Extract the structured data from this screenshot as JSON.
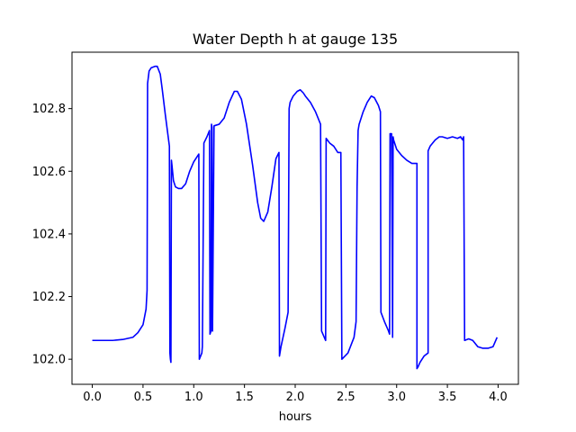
{
  "chart_data": {
    "type": "line",
    "title": "Water Depth h at gauge 135",
    "xlabel": "hours",
    "ylabel": "",
    "xlim": [
      -0.2,
      4.2
    ],
    "ylim": [
      101.92,
      102.98
    ],
    "x_ticks": [
      0.0,
      0.5,
      1.0,
      1.5,
      2.0,
      2.5,
      3.0,
      3.5,
      4.0
    ],
    "x_tick_labels": [
      "0.0",
      "0.5",
      "1.0",
      "1.5",
      "2.0",
      "2.5",
      "3.0",
      "3.5",
      "4.0"
    ],
    "y_ticks": [
      102.0,
      102.2,
      102.4,
      102.6,
      102.8
    ],
    "y_tick_labels": [
      "102.0",
      "102.2",
      "102.4",
      "102.6",
      "102.8"
    ],
    "grid": false,
    "legend": "none",
    "line_color": "#0000ff",
    "series": [
      {
        "x": [
          0.0,
          0.2,
          0.3,
          0.4,
          0.45,
          0.5,
          0.53,
          0.54,
          0.545,
          0.56,
          0.58,
          0.62,
          0.64,
          0.67,
          0.69,
          0.72,
          0.76,
          0.765,
          0.77,
          0.775,
          0.78,
          0.785,
          0.8,
          0.82,
          0.85,
          0.88,
          0.92,
          0.96,
          1.0,
          1.05,
          1.055,
          1.08,
          1.085,
          1.1,
          1.13,
          1.155,
          1.16,
          1.17,
          1.175,
          1.18,
          1.185,
          1.2,
          1.25,
          1.3,
          1.35,
          1.4,
          1.43,
          1.47,
          1.52,
          1.58,
          1.63,
          1.66,
          1.69,
          1.73,
          1.77,
          1.81,
          1.84,
          1.845,
          1.86,
          1.9,
          1.93,
          1.94,
          1.95,
          1.98,
          2.02,
          2.05,
          2.08,
          2.1,
          2.15,
          2.2,
          2.25,
          2.26,
          2.3,
          2.305,
          2.34,
          2.38,
          2.42,
          2.45,
          2.46,
          2.52,
          2.58,
          2.6,
          2.61,
          2.62,
          2.63,
          2.67,
          2.71,
          2.75,
          2.78,
          2.82,
          2.84,
          2.845,
          2.88,
          2.92,
          2.93,
          2.935,
          2.95,
          2.96,
          2.965,
          2.97,
          3.0,
          3.05,
          3.1,
          3.15,
          3.2,
          3.2,
          3.21,
          3.23,
          3.27,
          3.31,
          3.31,
          3.33,
          3.38,
          3.4,
          3.42,
          3.45,
          3.5,
          3.55,
          3.6,
          3.63,
          3.65,
          3.66,
          3.67,
          3.71,
          3.75,
          3.8,
          3.85,
          3.9,
          3.95,
          3.99
        ],
        "y": [
          102.06,
          102.06,
          102.063,
          102.07,
          102.085,
          102.11,
          102.16,
          102.22,
          102.88,
          102.92,
          102.93,
          102.935,
          102.935,
          102.91,
          102.86,
          102.78,
          102.68,
          102.02,
          102.0,
          101.99,
          102.635,
          102.62,
          102.57,
          102.55,
          102.545,
          102.545,
          102.56,
          102.6,
          102.63,
          102.655,
          102.0,
          102.02,
          102.04,
          102.69,
          102.71,
          102.73,
          102.08,
          102.09,
          102.75,
          102.74,
          102.09,
          102.745,
          102.75,
          102.77,
          102.82,
          102.855,
          102.855,
          102.83,
          102.75,
          102.62,
          102.5,
          102.45,
          102.44,
          102.47,
          102.55,
          102.64,
          102.66,
          102.01,
          102.04,
          102.1,
          102.15,
          102.8,
          102.82,
          102.84,
          102.855,
          102.86,
          102.85,
          102.84,
          102.82,
          102.79,
          102.75,
          102.09,
          102.06,
          102.705,
          102.69,
          102.68,
          102.66,
          102.66,
          102.0,
          102.02,
          102.07,
          102.12,
          102.55,
          102.73,
          102.75,
          102.79,
          102.82,
          102.84,
          102.835,
          102.81,
          102.79,
          102.15,
          102.12,
          102.09,
          102.08,
          102.72,
          102.72,
          102.07,
          102.71,
          102.7,
          102.67,
          102.65,
          102.635,
          102.625,
          102.625,
          101.97,
          101.975,
          101.99,
          102.01,
          102.02,
          102.665,
          102.68,
          102.7,
          102.705,
          102.71,
          102.71,
          102.705,
          102.71,
          102.705,
          102.71,
          102.7,
          102.71,
          102.06,
          102.065,
          102.06,
          102.04,
          102.035,
          102.035,
          102.04,
          102.07
        ]
      }
    ]
  }
}
